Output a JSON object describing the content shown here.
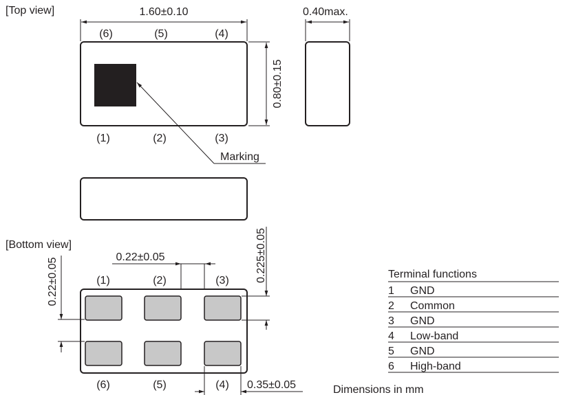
{
  "views": {
    "top": "[Top view]",
    "bottom": "[Bottom view]"
  },
  "dimensions": {
    "length": "1.60±0.10",
    "height": "0.40max.",
    "width": "0.80±0.15",
    "pad_pitch": "0.22±0.05",
    "pad_height": "0.22±0.05",
    "pad_gap": "0.225±0.05",
    "pad_width": "0.35±0.05"
  },
  "marking_label": "Marking",
  "top_pins": [
    "(6)",
    "(5)",
    "(4)",
    "(1)",
    "(2)",
    "(3)"
  ],
  "bottom_pins": [
    "(1)",
    "(2)",
    "(3)",
    "(6)",
    "(5)",
    "(4)"
  ],
  "terminal_table": {
    "title": "Terminal functions",
    "rows": [
      {
        "num": "1",
        "func": "GND"
      },
      {
        "num": "2",
        "func": "Common"
      },
      {
        "num": "3",
        "func": "GND"
      },
      {
        "num": "4",
        "func": "Low-band"
      },
      {
        "num": "5",
        "func": "GND"
      },
      {
        "num": "6",
        "func": "High-band"
      }
    ]
  },
  "units_note": "Dimensions in mm",
  "colors": {
    "ink": "#231f20",
    "pad": "#c8c8c8",
    "marking": "#231f20"
  }
}
